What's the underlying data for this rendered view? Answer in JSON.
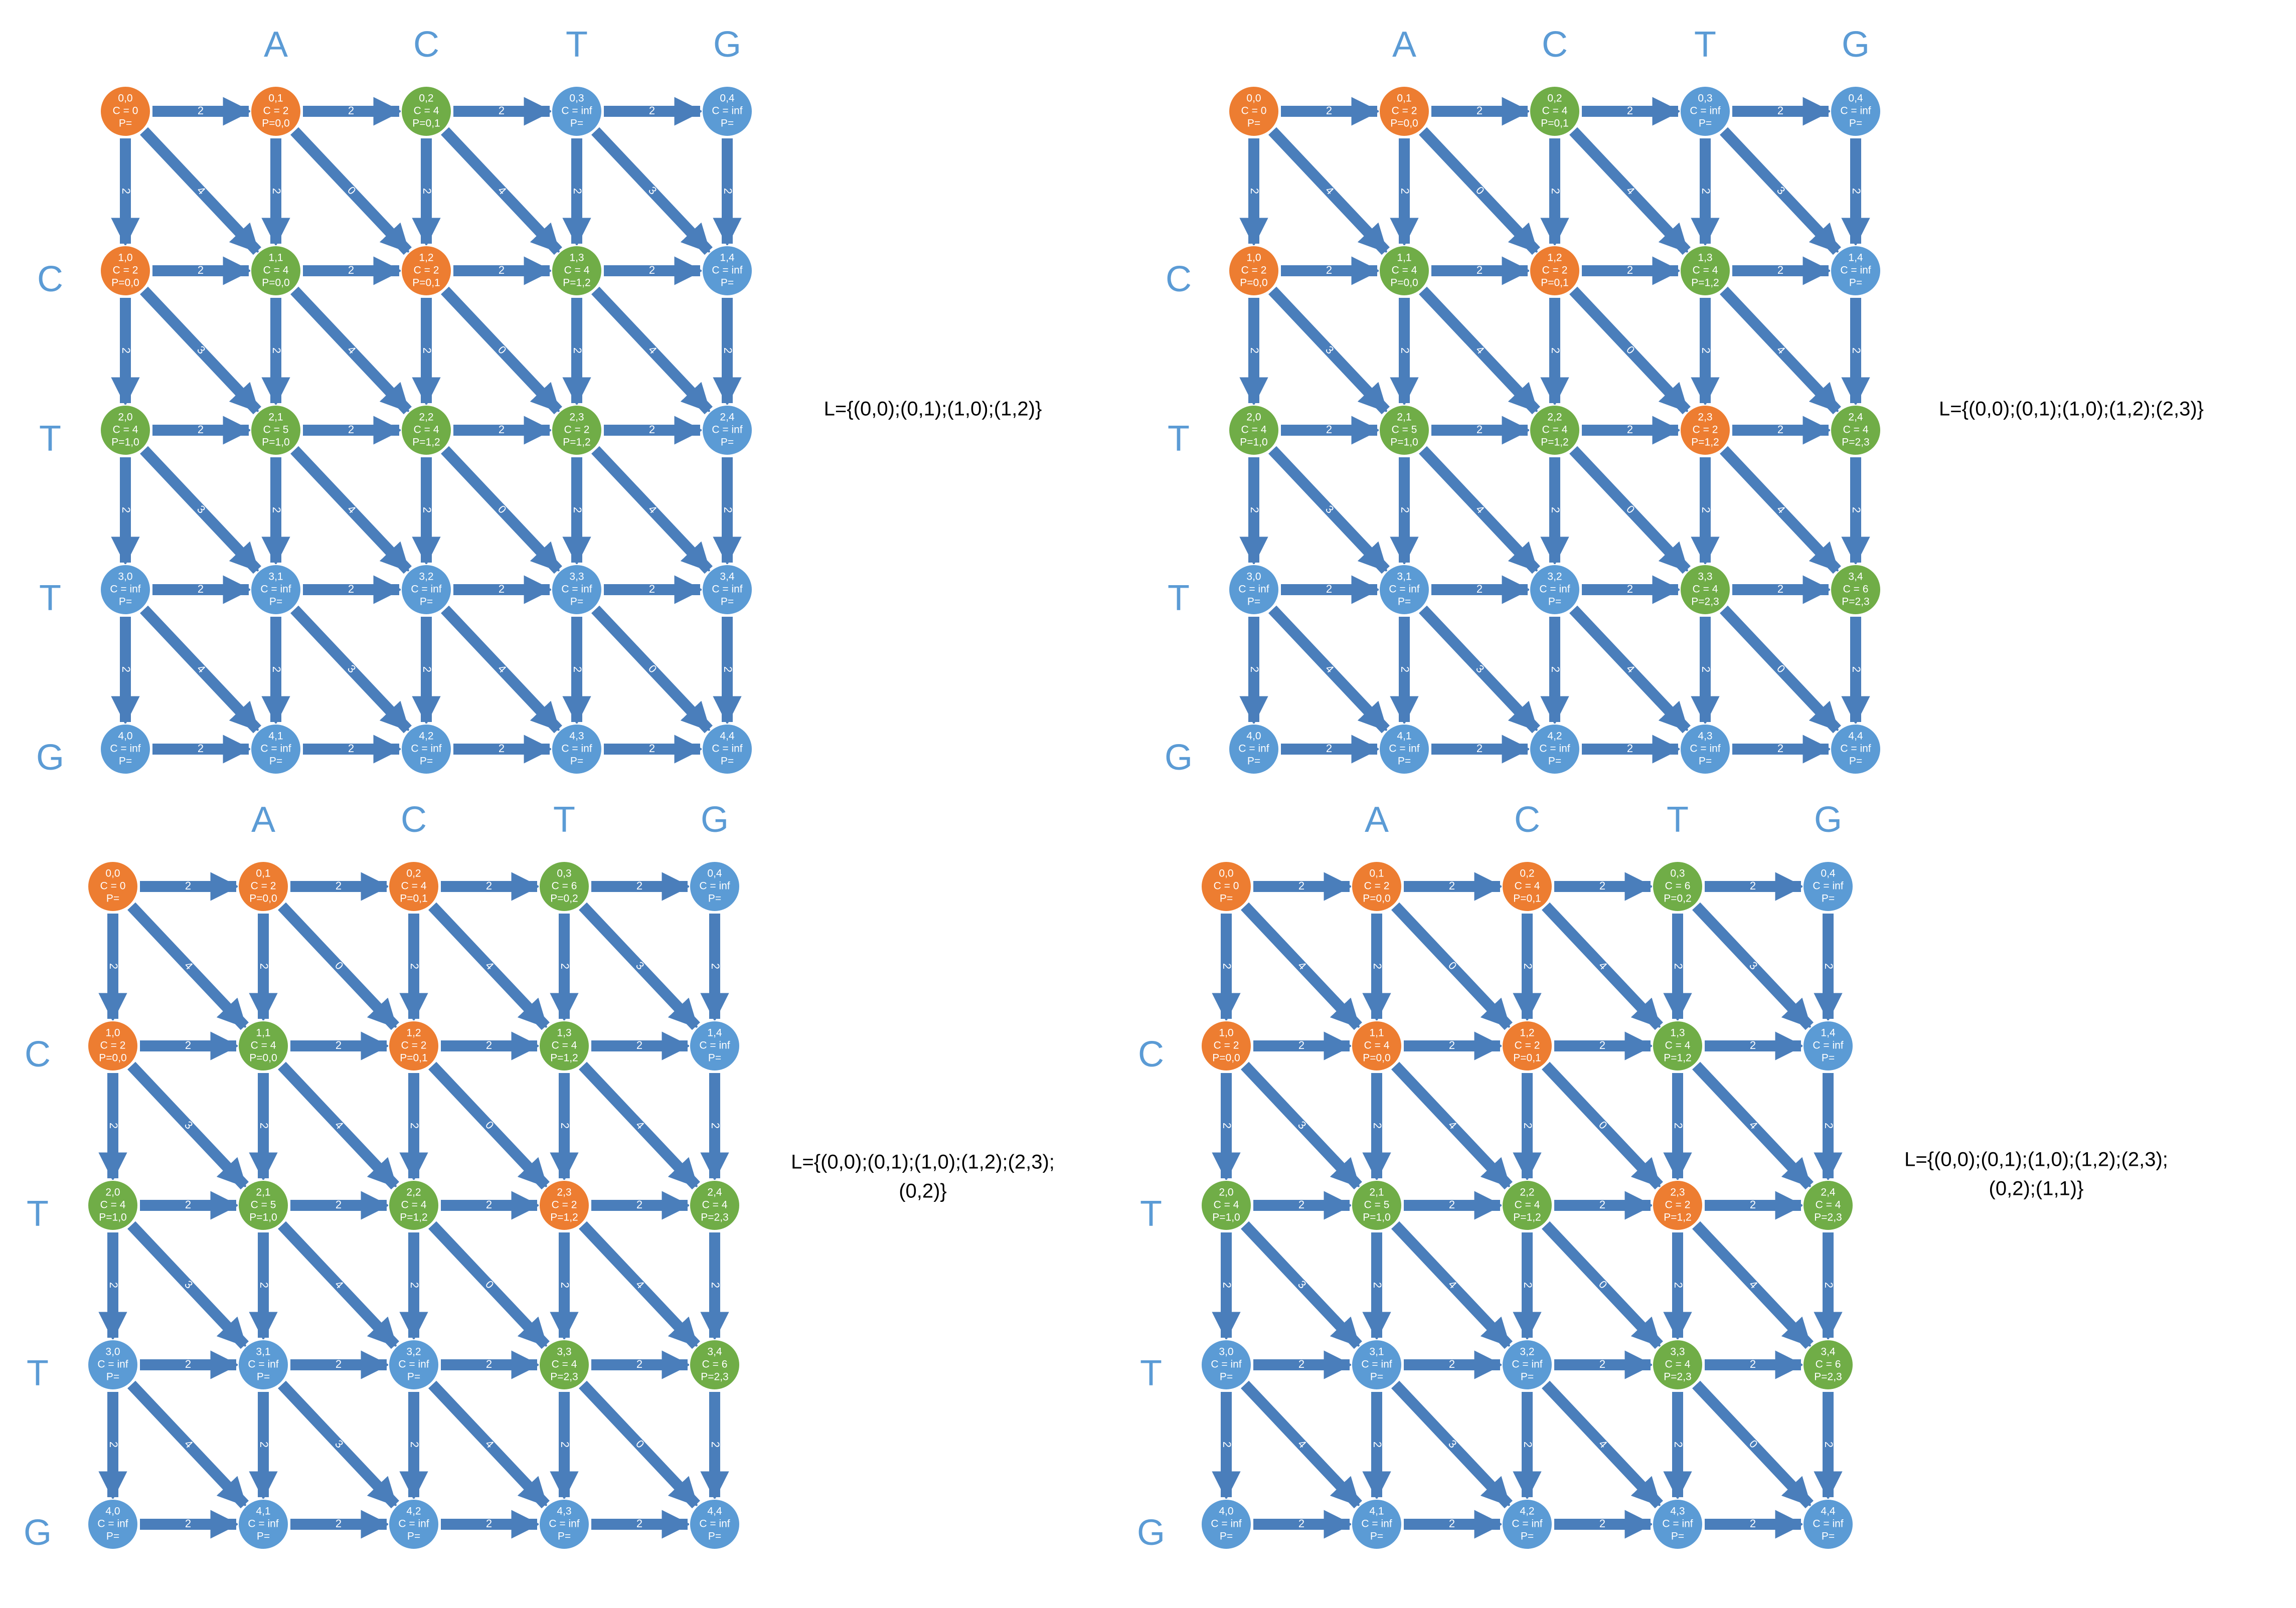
{
  "colors": {
    "edge": "#4a7ebb",
    "unvisited": "#5b9bd5",
    "visited": "#ed7d31",
    "tentative": "#70ad47",
    "letter": "#5b9bd5",
    "text": "#ffffff",
    "list_text": "#000000"
  },
  "column_letters": [
    "A",
    "C",
    "T",
    "G"
  ],
  "row_letters": [
    "C",
    "T",
    "T",
    "G"
  ],
  "weights": {
    "horizontal": [
      [
        "2",
        "2",
        "2",
        "2"
      ],
      [
        "2",
        "2",
        "2",
        "2"
      ],
      [
        "2",
        "2",
        "2",
        "2"
      ],
      [
        "2",
        "2",
        "2",
        "2"
      ],
      [
        "2",
        "2",
        "2",
        "2"
      ]
    ],
    "vertical": [
      [
        "2",
        "2",
        "2",
        "2",
        "2"
      ],
      [
        "2",
        "2",
        "2",
        "2",
        "2"
      ],
      [
        "2",
        "2",
        "2",
        "2",
        "2"
      ],
      [
        "2",
        "2",
        "2",
        "2",
        "2"
      ]
    ],
    "diagonal": [
      [
        "4",
        "0",
        "4",
        "3"
      ],
      [
        "3",
        "4",
        "0",
        "4"
      ],
      [
        "3",
        "4",
        "0",
        "4"
      ],
      [
        "4",
        "3",
        "4",
        "0"
      ]
    ]
  },
  "panels": [
    {
      "list_lines": [
        "L={(0,0);(0,1);(1,0);(1,2)}"
      ],
      "nodes": [
        [
          {
            "id": "0,0",
            "c": "C = 0",
            "p": "P=",
            "state": "visited"
          },
          {
            "id": "0,1",
            "c": "C = 2",
            "p": "P=0,0",
            "state": "visited"
          },
          {
            "id": "0,2",
            "c": "C = 4",
            "p": "P=0,1",
            "state": "tentative"
          },
          {
            "id": "0,3",
            "c": "C = inf",
            "p": "P=",
            "state": "unvisited"
          },
          {
            "id": "0,4",
            "c": "C = inf",
            "p": "P=",
            "state": "unvisited"
          }
        ],
        [
          {
            "id": "1,0",
            "c": "C = 2",
            "p": "P=0,0",
            "state": "visited"
          },
          {
            "id": "1,1",
            "c": "C = 4",
            "p": "P=0,0",
            "state": "tentative"
          },
          {
            "id": "1,2",
            "c": "C = 2",
            "p": "P=0,1",
            "state": "visited"
          },
          {
            "id": "1,3",
            "c": "C = 4",
            "p": "P=1,2",
            "state": "tentative"
          },
          {
            "id": "1,4",
            "c": "C = inf",
            "p": "P=",
            "state": "unvisited"
          }
        ],
        [
          {
            "id": "2,0",
            "c": "C = 4",
            "p": "P=1,0",
            "state": "tentative"
          },
          {
            "id": "2,1",
            "c": "C = 5",
            "p": "P=1,0",
            "state": "tentative"
          },
          {
            "id": "2,2",
            "c": "C = 4",
            "p": "P=1,2",
            "state": "tentative"
          },
          {
            "id": "2,3",
            "c": "C = 2",
            "p": "P=1,2",
            "state": "tentative"
          },
          {
            "id": "2,4",
            "c": "C = inf",
            "p": "P=",
            "state": "unvisited"
          }
        ],
        [
          {
            "id": "3,0",
            "c": "C = inf",
            "p": "P=",
            "state": "unvisited"
          },
          {
            "id": "3,1",
            "c": "C = inf",
            "p": "P=",
            "state": "unvisited"
          },
          {
            "id": "3,2",
            "c": "C = inf",
            "p": "P=",
            "state": "unvisited"
          },
          {
            "id": "3,3",
            "c": "C = inf",
            "p": "P=",
            "state": "unvisited"
          },
          {
            "id": "3,4",
            "c": "C = inf",
            "p": "P=",
            "state": "unvisited"
          }
        ],
        [
          {
            "id": "4,0",
            "c": "C = inf",
            "p": "P=",
            "state": "unvisited"
          },
          {
            "id": "4,1",
            "c": "C = inf",
            "p": "P=",
            "state": "unvisited"
          },
          {
            "id": "4,2",
            "c": "C = inf",
            "p": "P=",
            "state": "unvisited"
          },
          {
            "id": "4,3",
            "c": "C = inf",
            "p": "P=",
            "state": "unvisited"
          },
          {
            "id": "4,4",
            "c": "C = inf",
            "p": "P=",
            "state": "unvisited"
          }
        ]
      ]
    },
    {
      "list_lines": [
        "L={(0,0);(0,1);(1,0);(1,2);(2,3)}"
      ],
      "nodes": [
        [
          {
            "id": "0,0",
            "c": "C = 0",
            "p": "P=",
            "state": "visited"
          },
          {
            "id": "0,1",
            "c": "C = 2",
            "p": "P=0,0",
            "state": "visited"
          },
          {
            "id": "0,2",
            "c": "C = 4",
            "p": "P=0,1",
            "state": "tentative"
          },
          {
            "id": "0,3",
            "c": "C = inf",
            "p": "P=",
            "state": "unvisited"
          },
          {
            "id": "0,4",
            "c": "C = inf",
            "p": "P=",
            "state": "unvisited"
          }
        ],
        [
          {
            "id": "1,0",
            "c": "C = 2",
            "p": "P=0,0",
            "state": "visited"
          },
          {
            "id": "1,1",
            "c": "C = 4",
            "p": "P=0,0",
            "state": "tentative"
          },
          {
            "id": "1,2",
            "c": "C = 2",
            "p": "P=0,1",
            "state": "visited"
          },
          {
            "id": "1,3",
            "c": "C = 4",
            "p": "P=1,2",
            "state": "tentative"
          },
          {
            "id": "1,4",
            "c": "C = inf",
            "p": "P=",
            "state": "unvisited"
          }
        ],
        [
          {
            "id": "2,0",
            "c": "C = 4",
            "p": "P=1,0",
            "state": "tentative"
          },
          {
            "id": "2,1",
            "c": "C = 5",
            "p": "P=1,0",
            "state": "tentative"
          },
          {
            "id": "2,2",
            "c": "C = 4",
            "p": "P=1,2",
            "state": "tentative"
          },
          {
            "id": "2,3",
            "c": "C = 2",
            "p": "P=1,2",
            "state": "visited"
          },
          {
            "id": "2,4",
            "c": "C = 4",
            "p": "P=2,3",
            "state": "tentative"
          }
        ],
        [
          {
            "id": "3,0",
            "c": "C = inf",
            "p": "P=",
            "state": "unvisited"
          },
          {
            "id": "3,1",
            "c": "C = inf",
            "p": "P=",
            "state": "unvisited"
          },
          {
            "id": "3,2",
            "c": "C = inf",
            "p": "P=",
            "state": "unvisited"
          },
          {
            "id": "3,3",
            "c": "C = 4",
            "p": "P=2,3",
            "state": "tentative"
          },
          {
            "id": "3,4",
            "c": "C = 6",
            "p": "P=2,3",
            "state": "tentative"
          }
        ],
        [
          {
            "id": "4,0",
            "c": "C = inf",
            "p": "P=",
            "state": "unvisited"
          },
          {
            "id": "4,1",
            "c": "C = inf",
            "p": "P=",
            "state": "unvisited"
          },
          {
            "id": "4,2",
            "c": "C = inf",
            "p": "P=",
            "state": "unvisited"
          },
          {
            "id": "4,3",
            "c": "C = inf",
            "p": "P=",
            "state": "unvisited"
          },
          {
            "id": "4,4",
            "c": "C = inf",
            "p": "P=",
            "state": "unvisited"
          }
        ]
      ]
    },
    {
      "list_lines": [
        "L={(0,0);(0,1);(1,0);(1,2);(2,3);",
        "(0,2)}"
      ],
      "nodes": [
        [
          {
            "id": "0,0",
            "c": "C = 0",
            "p": "P=",
            "state": "visited"
          },
          {
            "id": "0,1",
            "c": "C = 2",
            "p": "P=0,0",
            "state": "visited"
          },
          {
            "id": "0,2",
            "c": "C = 4",
            "p": "P=0,1",
            "state": "visited"
          },
          {
            "id": "0,3",
            "c": "C = 6",
            "p": "P=0,2",
            "state": "tentative"
          },
          {
            "id": "0,4",
            "c": "C = inf",
            "p": "P=",
            "state": "unvisited"
          }
        ],
        [
          {
            "id": "1,0",
            "c": "C = 2",
            "p": "P=0,0",
            "state": "visited"
          },
          {
            "id": "1,1",
            "c": "C = 4",
            "p": "P=0,0",
            "state": "tentative"
          },
          {
            "id": "1,2",
            "c": "C = 2",
            "p": "P=0,1",
            "state": "visited"
          },
          {
            "id": "1,3",
            "c": "C = 4",
            "p": "P=1,2",
            "state": "tentative"
          },
          {
            "id": "1,4",
            "c": "C = inf",
            "p": "P=",
            "state": "unvisited"
          }
        ],
        [
          {
            "id": "2,0",
            "c": "C = 4",
            "p": "P=1,0",
            "state": "tentative"
          },
          {
            "id": "2,1",
            "c": "C = 5",
            "p": "P=1,0",
            "state": "tentative"
          },
          {
            "id": "2,2",
            "c": "C = 4",
            "p": "P=1,2",
            "state": "tentative"
          },
          {
            "id": "2,3",
            "c": "C = 2",
            "p": "P=1,2",
            "state": "visited"
          },
          {
            "id": "2,4",
            "c": "C = 4",
            "p": "P=2,3",
            "state": "tentative"
          }
        ],
        [
          {
            "id": "3,0",
            "c": "C = inf",
            "p": "P=",
            "state": "unvisited"
          },
          {
            "id": "3,1",
            "c": "C = inf",
            "p": "P=",
            "state": "unvisited"
          },
          {
            "id": "3,2",
            "c": "C = inf",
            "p": "P=",
            "state": "unvisited"
          },
          {
            "id": "3,3",
            "c": "C = 4",
            "p": "P=2,3",
            "state": "tentative"
          },
          {
            "id": "3,4",
            "c": "C = 6",
            "p": "P=2,3",
            "state": "tentative"
          }
        ],
        [
          {
            "id": "4,0",
            "c": "C = inf",
            "p": "P=",
            "state": "unvisited"
          },
          {
            "id": "4,1",
            "c": "C = inf",
            "p": "P=",
            "state": "unvisited"
          },
          {
            "id": "4,2",
            "c": "C = inf",
            "p": "P=",
            "state": "unvisited"
          },
          {
            "id": "4,3",
            "c": "C = inf",
            "p": "P=",
            "state": "unvisited"
          },
          {
            "id": "4,4",
            "c": "C = inf",
            "p": "P=",
            "state": "unvisited"
          }
        ]
      ]
    },
    {
      "list_lines": [
        "L={(0,0);(0,1);(1,0);(1,2);(2,3);",
        "(0,2);(1,1)}"
      ],
      "nodes": [
        [
          {
            "id": "0,0",
            "c": "C = 0",
            "p": "P=",
            "state": "visited"
          },
          {
            "id": "0,1",
            "c": "C = 2",
            "p": "P=0,0",
            "state": "visited"
          },
          {
            "id": "0,2",
            "c": "C = 4",
            "p": "P=0,1",
            "state": "visited"
          },
          {
            "id": "0,3",
            "c": "C = 6",
            "p": "P=0,2",
            "state": "tentative"
          },
          {
            "id": "0,4",
            "c": "C = inf",
            "p": "P=",
            "state": "unvisited"
          }
        ],
        [
          {
            "id": "1,0",
            "c": "C = 2",
            "p": "P=0,0",
            "state": "visited"
          },
          {
            "id": "1,1",
            "c": "C = 4",
            "p": "P=0,0",
            "state": "visited"
          },
          {
            "id": "1,2",
            "c": "C = 2",
            "p": "P=0,1",
            "state": "visited"
          },
          {
            "id": "1,3",
            "c": "C = 4",
            "p": "P=1,2",
            "state": "tentative"
          },
          {
            "id": "1,4",
            "c": "C = inf",
            "p": "P=",
            "state": "unvisited"
          }
        ],
        [
          {
            "id": "2,0",
            "c": "C = 4",
            "p": "P=1,0",
            "state": "tentative"
          },
          {
            "id": "2,1",
            "c": "C = 5",
            "p": "P=1,0",
            "state": "tentative"
          },
          {
            "id": "2,2",
            "c": "C = 4",
            "p": "P=1,2",
            "state": "tentative"
          },
          {
            "id": "2,3",
            "c": "C = 2",
            "p": "P=1,2",
            "state": "visited"
          },
          {
            "id": "2,4",
            "c": "C = 4",
            "p": "P=2,3",
            "state": "tentative"
          }
        ],
        [
          {
            "id": "3,0",
            "c": "C = inf",
            "p": "P=",
            "state": "unvisited"
          },
          {
            "id": "3,1",
            "c": "C = inf",
            "p": "P=",
            "state": "unvisited"
          },
          {
            "id": "3,2",
            "c": "C = inf",
            "p": "P=",
            "state": "unvisited"
          },
          {
            "id": "3,3",
            "c": "C = 4",
            "p": "P=2,3",
            "state": "tentative"
          },
          {
            "id": "3,4",
            "c": "C = 6",
            "p": "P=2,3",
            "state": "tentative"
          }
        ],
        [
          {
            "id": "4,0",
            "c": "C = inf",
            "p": "P=",
            "state": "unvisited"
          },
          {
            "id": "4,1",
            "c": "C = inf",
            "p": "P=",
            "state": "unvisited"
          },
          {
            "id": "4,2",
            "c": "C = inf",
            "p": "P=",
            "state": "unvisited"
          },
          {
            "id": "4,3",
            "c": "C = inf",
            "p": "P=",
            "state": "unvisited"
          },
          {
            "id": "4,4",
            "c": "C = inf",
            "p": "P=",
            "state": "unvisited"
          }
        ]
      ]
    }
  ]
}
